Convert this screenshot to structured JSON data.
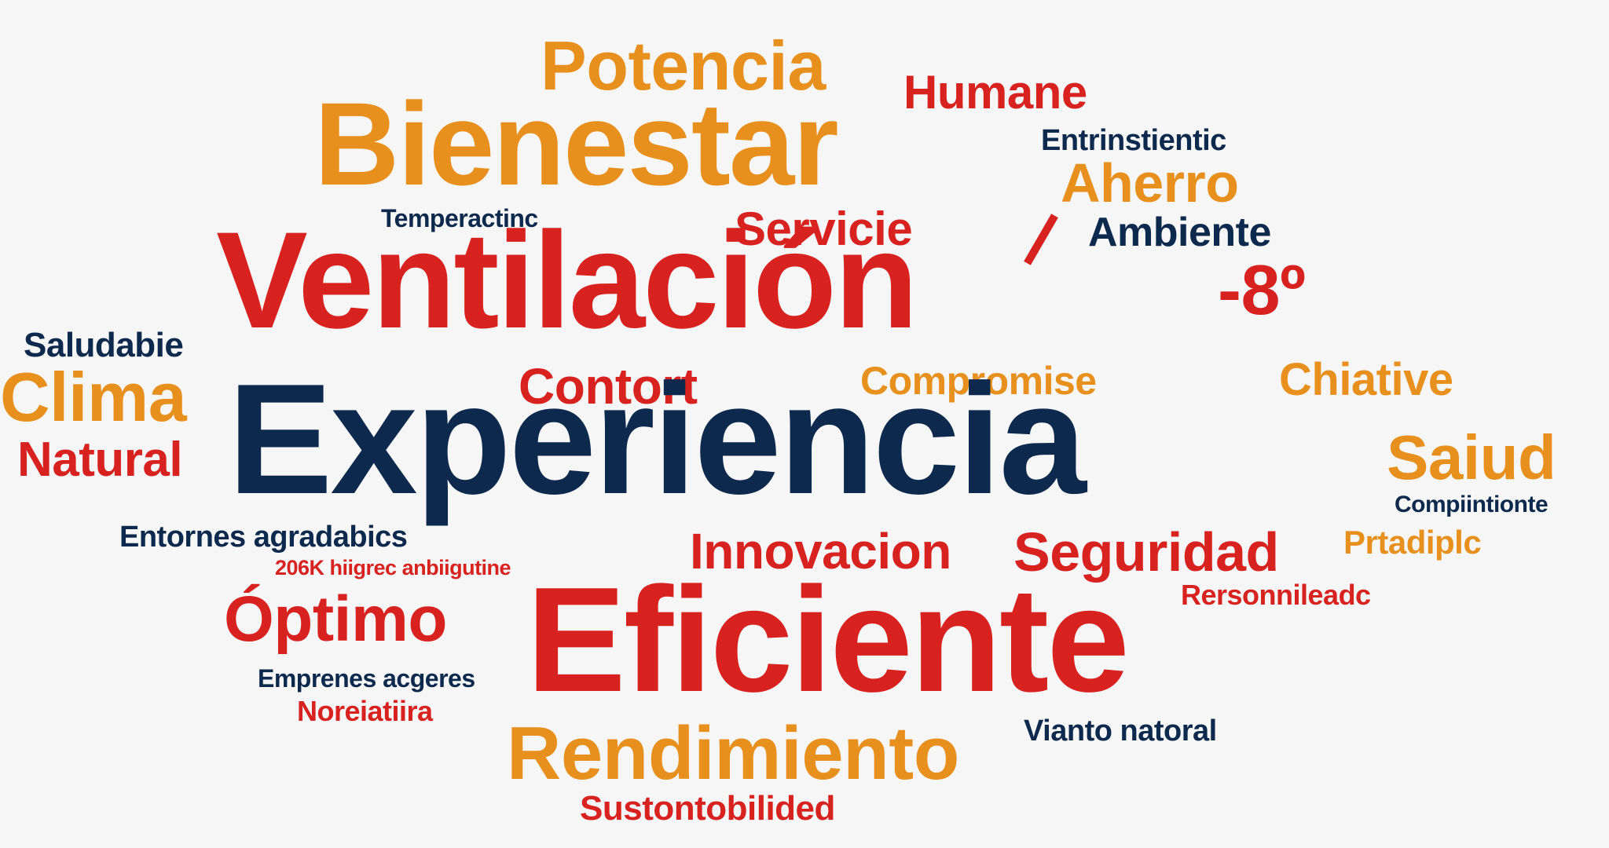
{
  "colors": {
    "orange": "#e8901e",
    "red": "#d8221f",
    "navy": "#0d2a4e",
    "background": "#f6f6f6"
  },
  "words": {
    "potencia": "Potencia",
    "humane": "Humane",
    "bienestar": "Bienestar",
    "entrinstientic": "Entrinstientic",
    "aherro": "Aherro",
    "temperactinc": "Temperactinc",
    "servicie": "Servicie",
    "ambiente": "Ambiente",
    "ventilacion": "Ventilación",
    "degrees": "-8º",
    "saludabie": "Saludabie",
    "clima": "Clima",
    "contort": "Contort",
    "compromise": "Compromise",
    "chiative": "Chiative",
    "natural": "Natural",
    "experiencia": "Experiencia",
    "saiud": "Saiud",
    "compiintionte": "Compiintionte",
    "entornes": "Entornes agradabics",
    "innovacion": "Innovacion",
    "seguridad": "Seguridad",
    "prtadiplc": "Prtadiplc",
    "hiigrec": "206K hiigrec anbiigutine",
    "rersonnileadc": "Rersonnileadc",
    "optimo": "Óptimo",
    "eficiente": "Eficiente",
    "emprenes": "Emprenes acgeres",
    "noreiatiira": "Noreiatiira",
    "viantonatoral": "Vianto natoral",
    "rendimiento": "Rendimiento",
    "sustontobilided": "Sustontobilided"
  }
}
